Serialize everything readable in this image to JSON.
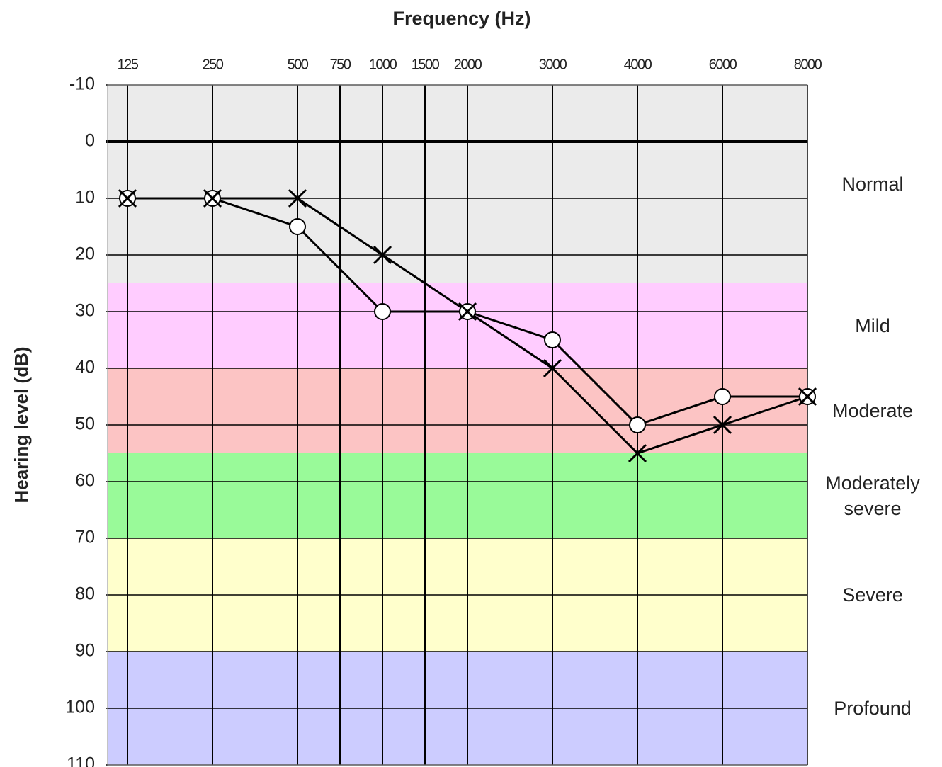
{
  "chart_data": {
    "type": "audiogram",
    "title": "Frequency (Hz)",
    "y_label": "Hearing level (dB)",
    "x": [
      125,
      250,
      500,
      1000,
      2000,
      3000,
      4000,
      6000,
      8000
    ],
    "xticks": [
      125,
      250,
      500,
      1000,
      2000,
      3000,
      4000,
      6000,
      8000
    ],
    "xticks_minor": [
      750,
      1500
    ],
    "ylim": [
      -10,
      110
    ],
    "y_inverted": true,
    "yticks": [
      -10,
      0,
      10,
      20,
      30,
      40,
      50,
      60,
      70,
      80,
      90,
      100,
      110
    ],
    "reference_line": 0,
    "grid": true,
    "bands": [
      {
        "label": "Normal",
        "from": -10,
        "to": 25,
        "color": "#ebebeb"
      },
      {
        "label": "Mild",
        "from": 25,
        "to": 40,
        "color": "#ffccff"
      },
      {
        "label": "Moderate",
        "from": 40,
        "to": 55,
        "color": "#fcc4c4"
      },
      {
        "label": "Moderately severe",
        "from": 55,
        "to": 70,
        "color": "#99fa99"
      },
      {
        "label": "Severe",
        "from": 70,
        "to": 90,
        "color": "#ffffcc"
      },
      {
        "label": "Profound",
        "from": 90,
        "to": 110,
        "color": "#ccccff"
      }
    ],
    "series": [
      {
        "marker": "circle",
        "color": "#000000",
        "values": [
          10,
          10,
          15,
          30,
          30,
          35,
          50,
          45,
          45
        ]
      },
      {
        "marker": "cross",
        "color": "#000000",
        "values": [
          10,
          10,
          10,
          20,
          30,
          40,
          55,
          50,
          45
        ]
      }
    ]
  }
}
